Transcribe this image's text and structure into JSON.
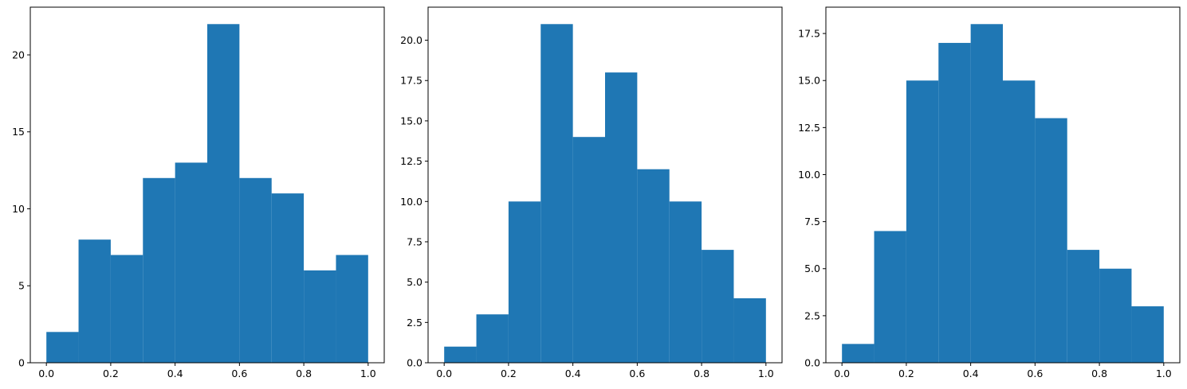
{
  "chart_data": [
    {
      "type": "histogram",
      "title": "",
      "xlabel": "",
      "ylabel": "",
      "bin_edges": [
        0.0,
        0.1,
        0.2,
        0.3,
        0.4,
        0.5,
        0.6,
        0.7,
        0.8,
        0.9,
        1.0
      ],
      "values": [
        2,
        8,
        7,
        12,
        13,
        22,
        12,
        11,
        6,
        7
      ],
      "xlim": [
        -0.05,
        1.05
      ],
      "ylim": [
        0,
        23.1
      ],
      "xticks": [
        0.0,
        0.2,
        0.4,
        0.6,
        0.8,
        1.0
      ],
      "xtick_labels": [
        "0.0",
        "0.2",
        "0.4",
        "0.6",
        "0.8",
        "1.0"
      ],
      "yticks": [
        0,
        5,
        10,
        15,
        20
      ],
      "ytick_labels": [
        "0",
        "5",
        "10",
        "15",
        "20"
      ],
      "bar_color": "#1f77b4",
      "grid": false
    },
    {
      "type": "histogram",
      "title": "",
      "xlabel": "",
      "ylabel": "",
      "bin_edges": [
        0.0,
        0.1,
        0.2,
        0.3,
        0.4,
        0.5,
        0.6,
        0.7,
        0.8,
        0.9,
        1.0
      ],
      "values": [
        1,
        3,
        10,
        21,
        14,
        18,
        12,
        10,
        7,
        4
      ],
      "xlim": [
        -0.05,
        1.05
      ],
      "ylim": [
        0,
        22.05
      ],
      "xticks": [
        0.0,
        0.2,
        0.4,
        0.6,
        0.8,
        1.0
      ],
      "xtick_labels": [
        "0.0",
        "0.2",
        "0.4",
        "0.6",
        "0.8",
        "1.0"
      ],
      "yticks": [
        0,
        2.5,
        5,
        7.5,
        10,
        12.5,
        15,
        17.5,
        20
      ],
      "ytick_labels": [
        "0.0",
        "2.5",
        "5.0",
        "7.5",
        "10.0",
        "12.5",
        "15.0",
        "17.5",
        "20.0"
      ],
      "bar_color": "#1f77b4",
      "grid": false
    },
    {
      "type": "histogram",
      "title": "",
      "xlabel": "",
      "ylabel": "",
      "bin_edges": [
        0.0,
        0.1,
        0.2,
        0.3,
        0.4,
        0.5,
        0.6,
        0.7,
        0.8,
        0.9,
        1.0
      ],
      "values": [
        1,
        7,
        15,
        17,
        18,
        15,
        13,
        6,
        5,
        3
      ],
      "xlim": [
        -0.05,
        1.05
      ],
      "ylim": [
        0,
        18.9
      ],
      "xticks": [
        0.0,
        0.2,
        0.4,
        0.6,
        0.8,
        1.0
      ],
      "xtick_labels": [
        "0.0",
        "0.2",
        "0.4",
        "0.6",
        "0.8",
        "1.0"
      ],
      "yticks": [
        0,
        2.5,
        5,
        7.5,
        10,
        12.5,
        15,
        17.5
      ],
      "ytick_labels": [
        "0.0",
        "2.5",
        "5.0",
        "7.5",
        "10.0",
        "12.5",
        "15.0",
        "17.5"
      ],
      "bar_color": "#1f77b4",
      "grid": false
    }
  ]
}
